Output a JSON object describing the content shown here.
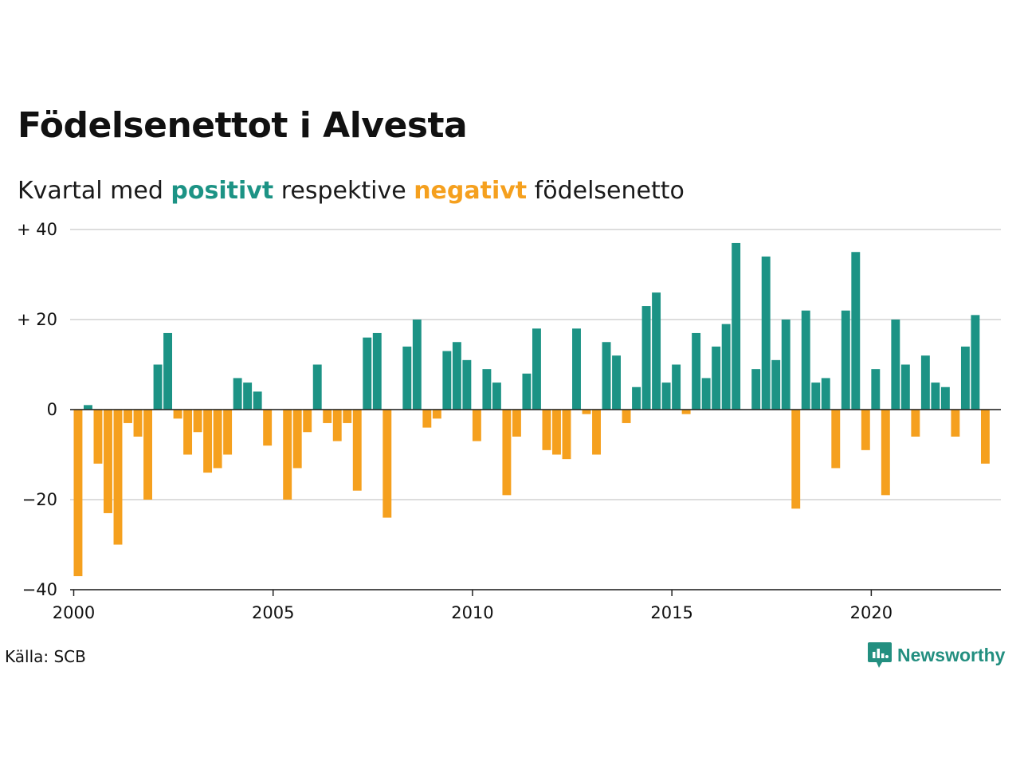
{
  "title": "Födelsenettot i Alvesta",
  "subtitle": {
    "prefix": "Kvartal med ",
    "positive_word": "positivt",
    "middle": " respektive ",
    "negative_word": "negativt",
    "suffix": " födelsenetto"
  },
  "source": "Källa: SCB",
  "brand": {
    "name": "Newsworthy",
    "icon": "newsworthy-logo-icon"
  },
  "colors": {
    "positive": "#1c9385",
    "negative": "#f5a01e",
    "grid": "#dddddd",
    "text": "#111111"
  },
  "chart_data": {
    "type": "bar",
    "title": "Födelsenettot i Alvesta",
    "subtitle": "Kvartal med positivt respektive negativt födelsenetto",
    "x_start": "2000 Q1",
    "x_ticks": [
      "2000",
      "2005",
      "2010",
      "2015",
      "2020"
    ],
    "y_ticks": [
      {
        "value": 40,
        "label": "+ 40"
      },
      {
        "value": 20,
        "label": "+ 20"
      },
      {
        "value": 0,
        "label": "0"
      },
      {
        "value": -20,
        "label": "−20"
      },
      {
        "value": -40,
        "label": "−40"
      }
    ],
    "ylim": [
      -40,
      40
    ],
    "grid": true,
    "categories": [
      "2000 Q1",
      "2000 Q2",
      "2000 Q3",
      "2000 Q4",
      "2001 Q1",
      "2001 Q2",
      "2001 Q3",
      "2001 Q4",
      "2002 Q1",
      "2002 Q2",
      "2002 Q3",
      "2002 Q4",
      "2003 Q1",
      "2003 Q2",
      "2003 Q3",
      "2003 Q4",
      "2004 Q1",
      "2004 Q2",
      "2004 Q3",
      "2004 Q4",
      "2005 Q1",
      "2005 Q2",
      "2005 Q3",
      "2005 Q4",
      "2006 Q1",
      "2006 Q2",
      "2006 Q3",
      "2006 Q4",
      "2007 Q1",
      "2007 Q2",
      "2007 Q3",
      "2007 Q4",
      "2008 Q1",
      "2008 Q2",
      "2008 Q3",
      "2008 Q4",
      "2009 Q1",
      "2009 Q2",
      "2009 Q3",
      "2009 Q4",
      "2010 Q1",
      "2010 Q2",
      "2010 Q3",
      "2010 Q4",
      "2011 Q1",
      "2011 Q2",
      "2011 Q3",
      "2011 Q4",
      "2012 Q1",
      "2012 Q2",
      "2012 Q3",
      "2012 Q4",
      "2013 Q1",
      "2013 Q2",
      "2013 Q3",
      "2013 Q4",
      "2014 Q1",
      "2014 Q2",
      "2014 Q3",
      "2014 Q4",
      "2015 Q1",
      "2015 Q2",
      "2015 Q3",
      "2015 Q4",
      "2016 Q1",
      "2016 Q2",
      "2016 Q3",
      "2016 Q4",
      "2017 Q1",
      "2017 Q2",
      "2017 Q3",
      "2017 Q4",
      "2018 Q1",
      "2018 Q2",
      "2018 Q3",
      "2018 Q4",
      "2019 Q1",
      "2019 Q2",
      "2019 Q3",
      "2019 Q4",
      "2020 Q1",
      "2020 Q2",
      "2020 Q3",
      "2020 Q4",
      "2021 Q1",
      "2021 Q2",
      "2021 Q3",
      "2021 Q4",
      "2022 Q1",
      "2022 Q2",
      "2022 Q3",
      "2022 Q4",
      "2023 Q1"
    ],
    "values": [
      -37,
      1,
      -12,
      -23,
      -30,
      -3,
      -6,
      -20,
      10,
      17,
      -2,
      -10,
      -5,
      -14,
      -13,
      -10,
      7,
      6,
      4,
      -8,
      0,
      -20,
      -13,
      -5,
      10,
      -3,
      -7,
      -3,
      -18,
      16,
      17,
      -24,
      0,
      14,
      20,
      -4,
      -2,
      13,
      15,
      11,
      -7,
      9,
      6,
      -19,
      -6,
      8,
      18,
      -9,
      -10,
      -11,
      18,
      -1,
      -10,
      15,
      12,
      -3,
      5,
      23,
      26,
      6,
      10,
      -1,
      17,
      7,
      14,
      19,
      37,
      0,
      9,
      34,
      11,
      20,
      -22,
      22,
      6,
      7,
      -13,
      22,
      35,
      -9,
      9,
      -19,
      20,
      10,
      -6,
      12,
      6,
      5,
      -6,
      14,
      21,
      -12,
      0
    ]
  }
}
